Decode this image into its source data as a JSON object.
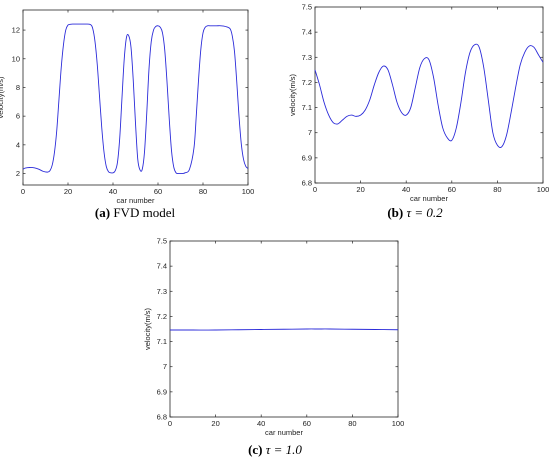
{
  "colors": {
    "line": "#2b2bd9",
    "axis": "#262626",
    "background": "#ffffff"
  },
  "chart_data": [
    {
      "id": "a",
      "type": "line",
      "caption_label": "(a)",
      "caption_text": "FVD model",
      "xlabel": "car number",
      "ylabel": "velocity(m/s)",
      "xlim": [
        0,
        100
      ],
      "ylim": [
        1.2,
        13.4
      ],
      "xticks": [
        0,
        20,
        40,
        60,
        80,
        100
      ],
      "yticks": [
        2,
        4,
        6,
        8,
        10,
        12
      ],
      "grid": false,
      "x": [
        0,
        1,
        3,
        5,
        7,
        9,
        11,
        12,
        13,
        14,
        15,
        16,
        17,
        18,
        19,
        20,
        21,
        22,
        24,
        26,
        28,
        30,
        31,
        32,
        33,
        34,
        35,
        36,
        37,
        38,
        39,
        40,
        41,
        42,
        43,
        44,
        45,
        46,
        47,
        48,
        49,
        50,
        51,
        52,
        53,
        54,
        55,
        56,
        57,
        58,
        59,
        60,
        61,
        62,
        63,
        64,
        65,
        66,
        67,
        68,
        69,
        70,
        71,
        72,
        74,
        76,
        77,
        78,
        79,
        80,
        81,
        82,
        83,
        84,
        86,
        88,
        90,
        92,
        93,
        94,
        95,
        96,
        97,
        98,
        99,
        100
      ],
      "values": [
        2.3,
        2.38,
        2.42,
        2.4,
        2.3,
        2.15,
        2.1,
        2.2,
        2.6,
        3.5,
        5.0,
        7.2,
        9.4,
        11.0,
        12.0,
        12.35,
        12.4,
        12.42,
        12.42,
        12.42,
        12.42,
        12.38,
        12.1,
        11.2,
        9.6,
        7.4,
        5.2,
        3.5,
        2.5,
        2.12,
        2.05,
        2.05,
        2.2,
        2.8,
        4.5,
        7.3,
        10.0,
        11.5,
        11.6,
        10.8,
        8.5,
        5.5,
        3.0,
        2.25,
        2.3,
        3.5,
        6.2,
        9.3,
        11.2,
        12.0,
        12.25,
        12.3,
        12.2,
        11.8,
        10.6,
        8.4,
        5.8,
        3.6,
        2.45,
        2.05,
        2.0,
        2.0,
        2.0,
        2.05,
        2.3,
        3.8,
        6.0,
        8.5,
        10.6,
        11.8,
        12.2,
        12.3,
        12.3,
        12.3,
        12.3,
        12.3,
        12.25,
        12.1,
        11.6,
        10.5,
        8.4,
        6.0,
        4.1,
        3.0,
        2.5,
        2.35
      ]
    },
    {
      "id": "b",
      "type": "line",
      "caption_label": "(b)",
      "caption_text": "τ = 0.2",
      "xlabel": "car number",
      "ylabel": "velocity(m/s)",
      "xlim": [
        0,
        100
      ],
      "ylim": [
        6.8,
        7.5
      ],
      "xticks": [
        0,
        20,
        40,
        60,
        80,
        100
      ],
      "yticks": [
        6.8,
        6.9,
        7.0,
        7.1,
        7.2,
        7.3,
        7.4,
        7.5
      ],
      "yticklabels": [
        "6.8",
        "6.9",
        "7",
        "7.1",
        "7.2",
        "7.3",
        "7.4",
        "7.5"
      ],
      "grid": false,
      "x": [
        0,
        2,
        4,
        6,
        8,
        10,
        12,
        14,
        16,
        18,
        20,
        22,
        24,
        26,
        28,
        30,
        32,
        34,
        36,
        38,
        40,
        42,
        44,
        46,
        48,
        50,
        52,
        54,
        56,
        58,
        60,
        62,
        64,
        66,
        68,
        70,
        72,
        74,
        76,
        78,
        80,
        82,
        84,
        86,
        88,
        90,
        92,
        94,
        96,
        98,
        100
      ],
      "values": [
        7.25,
        7.19,
        7.12,
        7.07,
        7.04,
        7.035,
        7.05,
        7.065,
        7.07,
        7.065,
        7.07,
        7.09,
        7.13,
        7.19,
        7.24,
        7.265,
        7.25,
        7.19,
        7.12,
        7.08,
        7.07,
        7.1,
        7.18,
        7.26,
        7.295,
        7.29,
        7.22,
        7.11,
        7.02,
        6.98,
        6.97,
        7.02,
        7.12,
        7.24,
        7.32,
        7.35,
        7.34,
        7.26,
        7.13,
        7.0,
        6.95,
        6.945,
        6.99,
        7.08,
        7.18,
        7.27,
        7.32,
        7.345,
        7.34,
        7.31,
        7.28
      ]
    },
    {
      "id": "c",
      "type": "line",
      "caption_label": "(c)",
      "caption_text": "τ = 1.0",
      "xlabel": "car number",
      "ylabel": "velocity(m/s)",
      "xlim": [
        0,
        100
      ],
      "ylim": [
        6.8,
        7.5
      ],
      "xticks": [
        0,
        20,
        40,
        60,
        80,
        100
      ],
      "yticks": [
        6.8,
        6.9,
        7.0,
        7.1,
        7.2,
        7.3,
        7.4,
        7.5
      ],
      "yticklabels": [
        "6.8",
        "6.9",
        "7",
        "7.1",
        "7.2",
        "7.3",
        "7.4",
        "7.5"
      ],
      "grid": false,
      "x": [
        0,
        10,
        20,
        30,
        40,
        50,
        60,
        65,
        70,
        80,
        90,
        100
      ],
      "values": [
        7.146,
        7.146,
        7.146,
        7.147,
        7.148,
        7.149,
        7.15,
        7.15,
        7.15,
        7.149,
        7.148,
        7.147
      ]
    }
  ]
}
